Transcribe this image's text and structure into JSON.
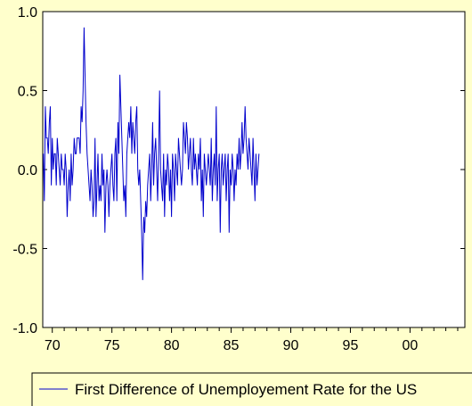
{
  "chart_data": {
    "type": "line",
    "title": "",
    "xlabel": "",
    "ylabel": "",
    "xlim": [
      1969.2,
      2004.6
    ],
    "ylim": [
      -1.0,
      1.0
    ],
    "x_tick_values": [
      1970,
      1975,
      1980,
      1985,
      1990,
      1995,
      2000
    ],
    "x_tick_labels": [
      "70",
      "75",
      "80",
      "85",
      "90",
      "95",
      "00"
    ],
    "y_tick_values": [
      1.0,
      0.5,
      0.0,
      -0.5,
      -1.0
    ],
    "y_tick_labels": [
      "1.0",
      "0.5",
      "0.0",
      "-0.5",
      "-1.0"
    ],
    "grid": false,
    "legend_position": "bottom",
    "series": [
      {
        "name": "First Difference of Unemployement Rate for the US",
        "color": "#0000cc",
        "x_start": 1969.25,
        "x_step": 0.08333,
        "values": [
          0.1,
          -0.2,
          0.4,
          0.2,
          0.2,
          0.1,
          0.3,
          0.4,
          -0.1,
          0.2,
          0,
          0.1,
          0.1,
          -0.1,
          0.2,
          0.1,
          0,
          -0.1,
          0.1,
          0,
          0,
          -0.1,
          0.1,
          0,
          -0.3,
          -0.1,
          0,
          -0.2,
          0.1,
          -0.1,
          0,
          0.2,
          0.1,
          0.1,
          0.2,
          0.2,
          0.2,
          0.1,
          0.4,
          0.3,
          0.5,
          0.9,
          0.6,
          0.3,
          0.1,
          0,
          -0.1,
          -0.2,
          0,
          -0.1,
          -0.3,
          -0.2,
          0.2,
          -0.3,
          -0.1,
          0.1,
          -0.2,
          -0.1,
          -0.2,
          0.1,
          -0.1,
          0,
          -0.4,
          -0.1,
          0,
          -0.1,
          -0.3,
          -0.1,
          0,
          0.1,
          -0.1,
          -0.2,
          0.1,
          0.2,
          -0.2,
          0.3,
          0.1,
          0.6,
          0.4,
          0.2,
          0,
          -0.2,
          -0.1,
          -0.3,
          0.1,
          0.2,
          0.3,
          0.2,
          0.4,
          0.1,
          0.3,
          0.2,
          0.1,
          0.3,
          0.4,
          0,
          -0.1,
          0,
          -0.2,
          -0.4,
          -0.7,
          -0.3,
          -0.4,
          -0.2,
          -0.3,
          -0.1,
          0,
          0.1,
          -0.2,
          0,
          0.3,
          -0.1,
          0.1,
          0.2,
          0,
          -0.2,
          0.1,
          0.5,
          0,
          -0.1,
          -0.2,
          0.1,
          -0.3,
          0,
          -0.1,
          0.1,
          0,
          -0.2,
          0,
          -0.3,
          0.1,
          0,
          -0.2,
          0.1,
          0,
          -0.1,
          0.2,
          0.1,
          0,
          -0.1,
          0,
          0.3,
          0.2,
          0.1,
          0.3,
          0.2,
          0,
          0.1,
          0.2,
          0,
          -0.1,
          0.2,
          0,
          0.1,
          0,
          -0.1,
          0.1,
          0,
          0.2,
          -0.2,
          0,
          -0.3,
          0.1,
          0,
          -0.1,
          0,
          0.1,
          0,
          -0.1,
          0.2,
          -0.2,
          0,
          0.1,
          -0.1,
          0.4,
          -0.2,
          0,
          0.1,
          -0.4,
          0,
          0.1,
          -0.1,
          0,
          0.1,
          -0.2,
          0,
          0.1,
          -0.4,
          0,
          -0.1,
          0.1,
          0,
          -0.2,
          0,
          -0.1,
          0.1,
          0,
          0.2,
          0,
          0.1,
          0.3,
          0.1,
          0.2,
          0.4,
          0.2,
          0.1,
          0,
          0.2,
          0.1,
          0,
          -0.1,
          0.2,
          0,
          -0.2,
          0.1,
          -0.1,
          0,
          0.1
        ]
      }
    ]
  }
}
